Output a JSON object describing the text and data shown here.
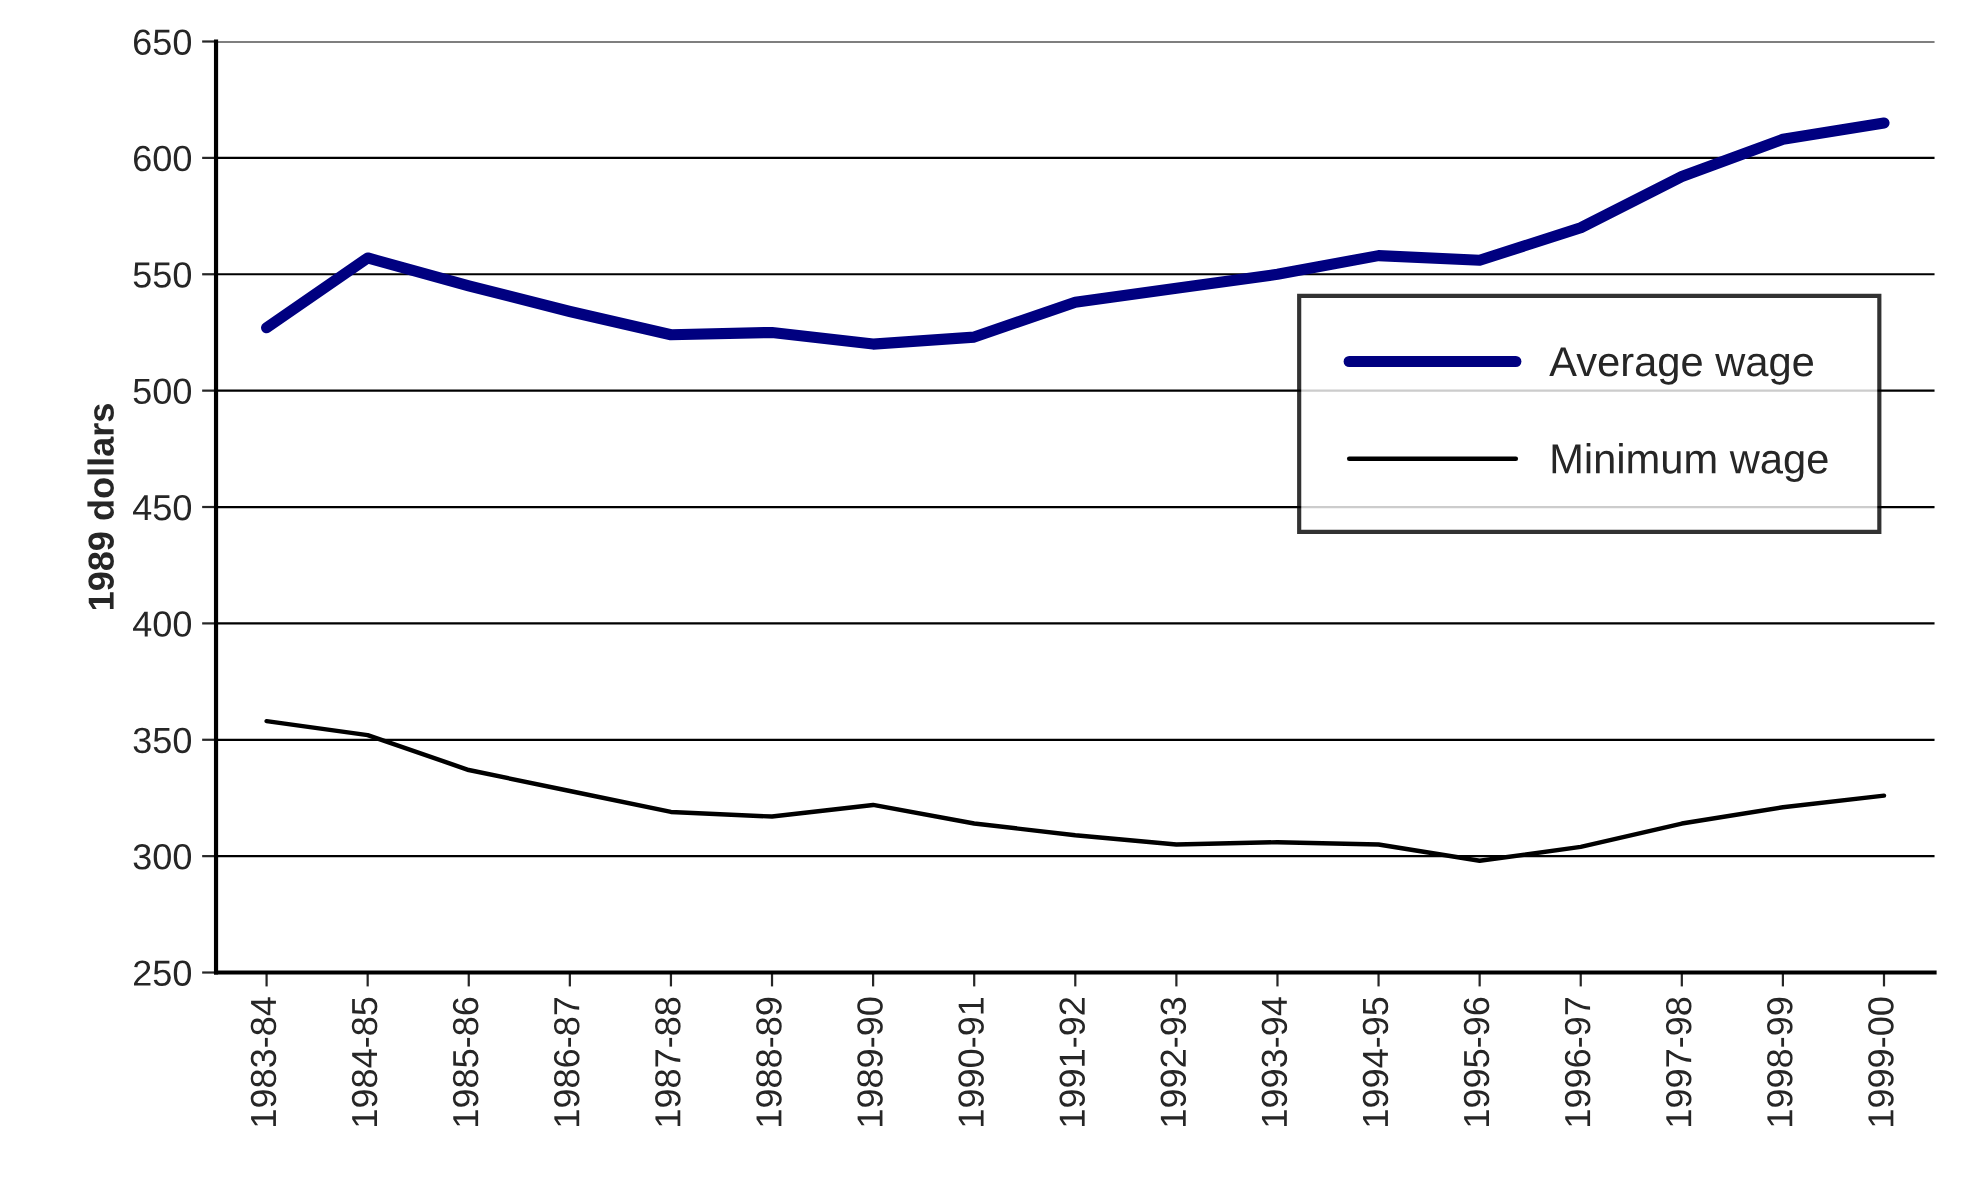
{
  "chart_data": {
    "type": "line",
    "categories": [
      "1983-84",
      "1984-85",
      "1985-86",
      "1986-87",
      "1987-88",
      "1988-89",
      "1989-90",
      "1990-91",
      "1991-92",
      "1992-93",
      "1993-94",
      "1994-95",
      "1995-96",
      "1996-97",
      "1997-98",
      "1998-99",
      "1999-00"
    ],
    "series": [
      {
        "name": "Average wage",
        "color": "#000080",
        "values": [
          527,
          557,
          545,
          534,
          524,
          525,
          520,
          523,
          538,
          544,
          550,
          558,
          556,
          570,
          592,
          608,
          615
        ]
      },
      {
        "name": "Minimum wage",
        "color": "#000000",
        "values": [
          358,
          352,
          337,
          328,
          319,
          317,
          322,
          314,
          309,
          305,
          306,
          305,
          298,
          304,
          314,
          321,
          326
        ]
      }
    ],
    "ylabel": "1989 dollars",
    "ylim": [
      250,
      650
    ],
    "yticks": [
      250,
      300,
      350,
      400,
      450,
      500,
      550,
      600,
      650
    ],
    "grid": "y",
    "legend": "right",
    "marker": "none",
    "line_style": "solid"
  }
}
